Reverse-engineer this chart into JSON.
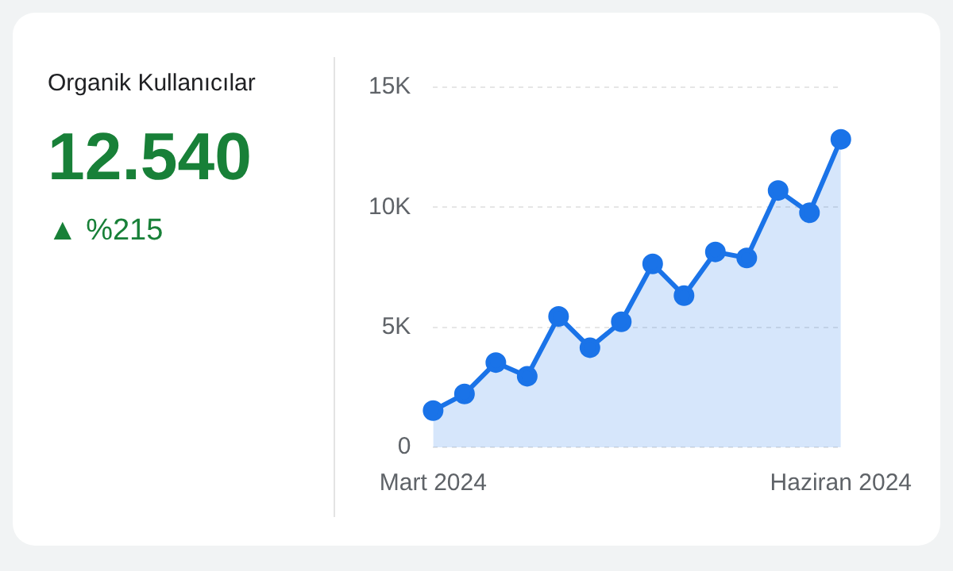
{
  "chart_data": [
    {
      "type": "other",
      "title": "Organik Kullanıcılar",
      "annotations": [
        "12.540",
        "▲ %215"
      ]
    },
    {
      "type": "area",
      "categories": [
        "Mart 2024",
        null,
        null,
        null,
        null,
        null,
        null,
        null,
        null,
        null,
        null,
        null,
        null,
        "Haziran 2024"
      ],
      "series": [
        {
          "color": "#1a73e8",
          "values": [
            1530,
            2220,
            3530,
            2960,
            5450,
            4150,
            5230,
            7640,
            6320,
            8140,
            7890,
            10700,
            9770,
            12830
          ]
        }
      ],
      "ylim": [
        0,
        15000
      ],
      "yticks": [
        {
          "value": 0,
          "label": "0"
        },
        {
          "value": 5000,
          "label": "5K"
        },
        {
          "value": 10000,
          "label": "10K"
        },
        {
          "value": 15000,
          "label": "15K"
        }
      ],
      "grid": "y",
      "marker": "circle",
      "line_style": "solid"
    }
  ]
}
